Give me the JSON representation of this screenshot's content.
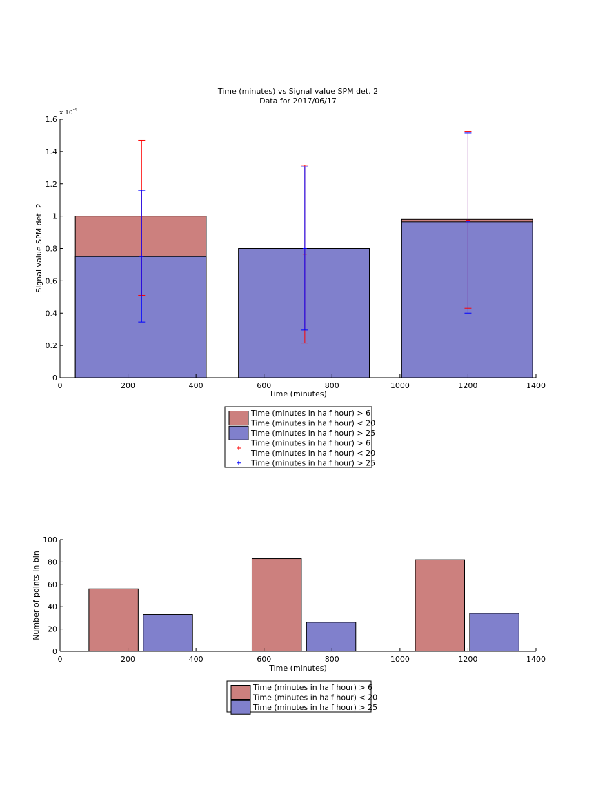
{
  "chart_data": [
    {
      "type": "bar",
      "title": "Time (minutes) vs Signal value SPM det. 2",
      "subtitle": "Data for 2017/06/17",
      "xlabel": "Time (minutes)",
      "ylabel": "Signal value SPM det. 2",
      "y_exponent_label": "x 10",
      "y_exponent_power": "-4",
      "xlim": [
        0,
        1400
      ],
      "ylim": [
        0,
        1.6
      ],
      "xticks": [
        0,
        200,
        400,
        600,
        800,
        1000,
        1200,
        1400
      ],
      "yticks": [
        0,
        0.2,
        0.4,
        0.6,
        0.8,
        1,
        1.2,
        1.4,
        1.6
      ],
      "grid": false,
      "legend_position": "below",
      "bars": [
        {
          "x_start": 45,
          "x_end": 430,
          "series1": 1.0,
          "series2": 0.75
        },
        {
          "x_start": 525,
          "x_end": 910,
          "series1": 0.8,
          "series2": 0.8
        },
        {
          "x_start": 1005,
          "x_end": 1390,
          "series1": 0.98,
          "series2": 0.965
        }
      ],
      "errorbars": [
        {
          "series": "red",
          "x": 240,
          "y": 1.0,
          "low": 0.51,
          "high": 1.47
        },
        {
          "series": "blue",
          "x": 240,
          "y": 0.75,
          "low": 0.345,
          "high": 1.16
        },
        {
          "series": "red",
          "x": 720,
          "y": 0.765,
          "low": 0.215,
          "high": 1.315
        },
        {
          "series": "blue",
          "x": 720,
          "y": 0.8,
          "low": 0.295,
          "high": 1.305
        },
        {
          "series": "red",
          "x": 1200,
          "y": 0.975,
          "low": 0.43,
          "high": 1.525
        },
        {
          "series": "blue",
          "x": 1200,
          "y": 0.965,
          "low": 0.4,
          "high": 1.515
        }
      ],
      "legend": [
        {
          "marker": "patch",
          "color": "#cc807e",
          "lines": [
            "Time (minutes in half hour) > 6",
            "Time (minutes in half hour) < 20"
          ]
        },
        {
          "marker": "patch",
          "color": "#8080cc",
          "lines": [
            "Time (minutes in half hour) > 25"
          ]
        },
        {
          "marker": "plus",
          "color": "#ff0000",
          "lines": [
            "Time (minutes in half hour) > 6",
            "Time (minutes in half hour) < 20"
          ]
        },
        {
          "marker": "plus",
          "color": "#0000ff",
          "lines": [
            "Time (minutes in half hour) > 25"
          ]
        }
      ]
    },
    {
      "type": "bar",
      "title": "",
      "xlabel": "Time (minutes)",
      "ylabel": "Number of points in bin",
      "xlim": [
        0,
        1400
      ],
      "ylim": [
        0,
        100
      ],
      "xticks": [
        0,
        200,
        400,
        600,
        800,
        1000,
        1200,
        1400
      ],
      "yticks": [
        0,
        20,
        40,
        60,
        80,
        100
      ],
      "grid": false,
      "legend_position": "below",
      "bars": [
        {
          "series": "red",
          "x_start": 85,
          "x_end": 230,
          "value": 56
        },
        {
          "series": "blue",
          "x_start": 245,
          "x_end": 390,
          "value": 33
        },
        {
          "series": "red",
          "x_start": 565,
          "x_end": 710,
          "value": 83
        },
        {
          "series": "blue",
          "x_start": 725,
          "x_end": 870,
          "value": 26
        },
        {
          "series": "red",
          "x_start": 1045,
          "x_end": 1190,
          "value": 82
        },
        {
          "series": "blue",
          "x_start": 1205,
          "x_end": 1350,
          "value": 34
        }
      ],
      "legend": [
        {
          "marker": "patch",
          "color": "#cc807e",
          "lines": [
            "Time (minutes in half hour) > 6",
            "Time (minutes in half hour) < 20"
          ]
        },
        {
          "marker": "patch",
          "color": "#8080cc",
          "lines": [
            "Time (minutes in half hour) > 25"
          ]
        }
      ]
    }
  ]
}
